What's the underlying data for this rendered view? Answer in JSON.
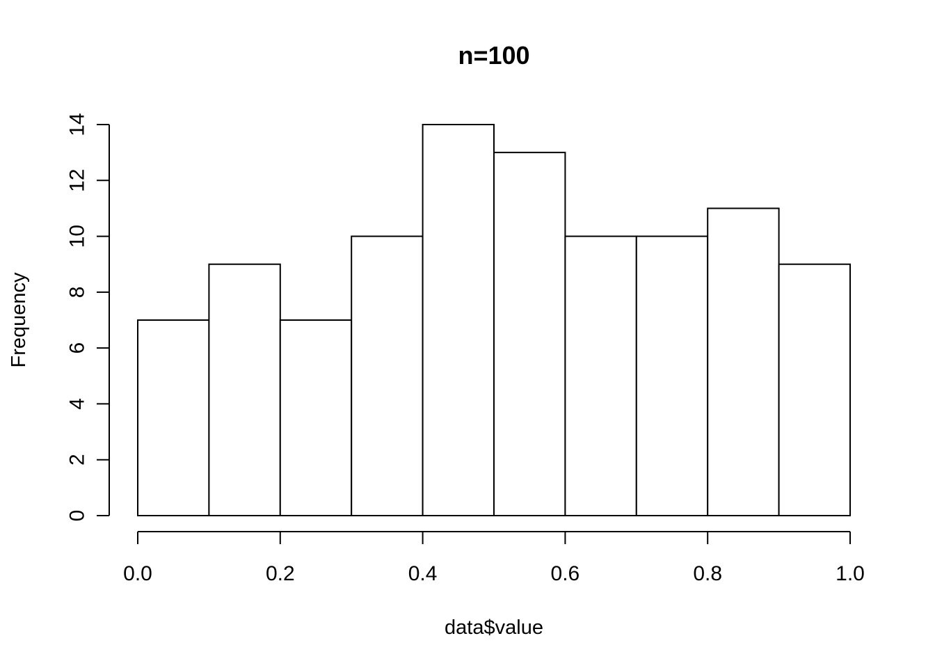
{
  "chart_data": {
    "type": "bar",
    "title": "n=100",
    "xlabel": "data$value",
    "ylabel": "Frequency",
    "bins": [
      {
        "start": 0.0,
        "end": 0.1,
        "count": 7
      },
      {
        "start": 0.1,
        "end": 0.2,
        "count": 9
      },
      {
        "start": 0.2,
        "end": 0.3,
        "count": 7
      },
      {
        "start": 0.3,
        "end": 0.4,
        "count": 10
      },
      {
        "start": 0.4,
        "end": 0.5,
        "count": 14
      },
      {
        "start": 0.5,
        "end": 0.6,
        "count": 13
      },
      {
        "start": 0.6,
        "end": 0.7,
        "count": 10
      },
      {
        "start": 0.7,
        "end": 0.8,
        "count": 10
      },
      {
        "start": 0.8,
        "end": 0.9,
        "count": 11
      },
      {
        "start": 0.9,
        "end": 1.0,
        "count": 9
      }
    ],
    "xlim": [
      0,
      1
    ],
    "ylim": [
      0,
      14
    ],
    "xticks": [
      0.0,
      0.2,
      0.4,
      0.6,
      0.8,
      1.0
    ],
    "xtick_labels": [
      "0.0",
      "0.2",
      "0.4",
      "0.6",
      "0.8",
      "1.0"
    ],
    "yticks": [
      0,
      2,
      4,
      6,
      8,
      10,
      12,
      14
    ],
    "ytick_labels": [
      "0",
      "2",
      "4",
      "6",
      "8",
      "10",
      "12",
      "14"
    ],
    "grid": false,
    "bar_fill": "#ffffff",
    "stroke_color": "#000000"
  }
}
